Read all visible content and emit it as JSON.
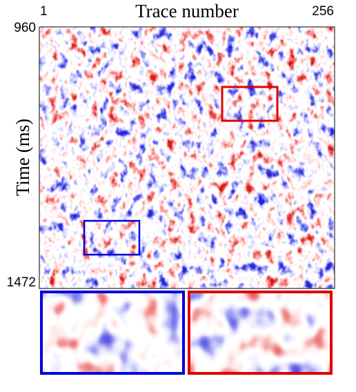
{
  "chart_data": {
    "type": "image",
    "title": "Trace number",
    "ylabel": "Time (ms)",
    "xlim": [
      1,
      256
    ],
    "xticks": [
      1,
      256
    ],
    "ylim": [
      960,
      1472
    ],
    "yticks": [
      960,
      1472
    ],
    "y_inverted": true
  }
}
